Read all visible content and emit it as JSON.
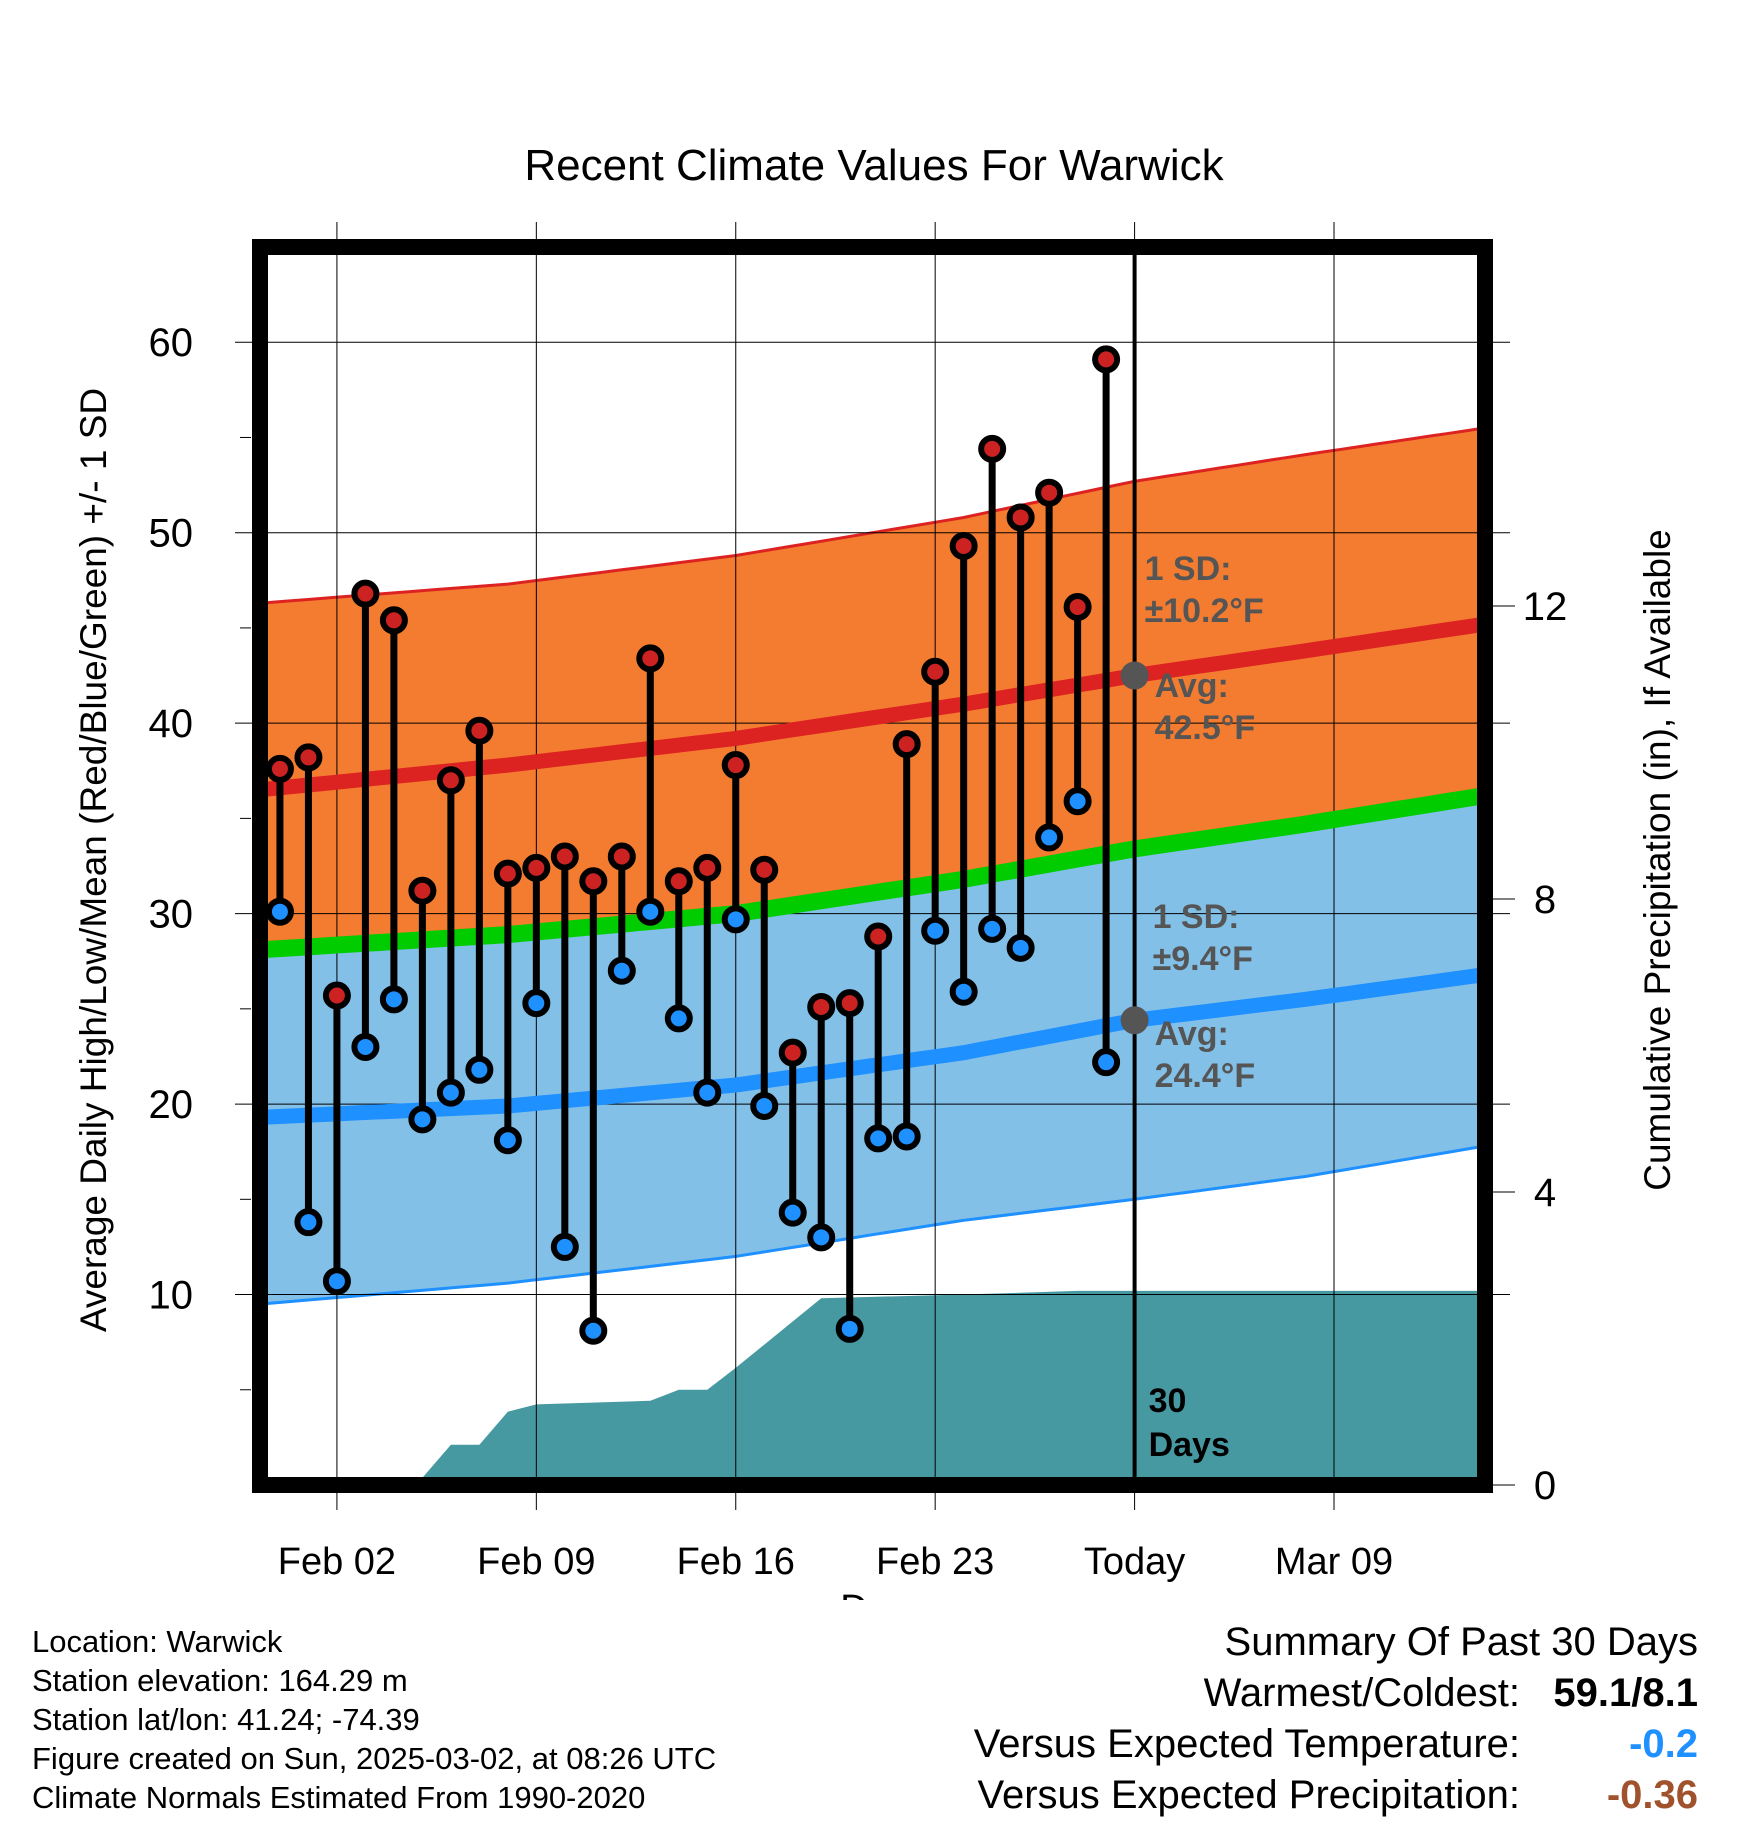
{
  "chart_data": {
    "type": "line",
    "title": "Recent Climate Values For Warwick",
    "xlabel": "Day",
    "ylabel": "Average Daily High/Low/Mean (Red/Blue/Green) +/- 1 SD",
    "y2label": "Cumulative Precipitation (in), If Available",
    "ylim": [
      0,
      65
    ],
    "y2lim": [
      0,
      16.9
    ],
    "xlim": [
      -2.7,
      40.3
    ],
    "y_ticks": [
      10,
      20,
      30,
      40,
      50,
      60
    ],
    "y2_ticks": [
      0,
      4,
      8,
      12
    ],
    "x_ticks": [
      {
        "day": 0,
        "label": "Feb 02"
      },
      {
        "day": 7,
        "label": "Feb 09"
      },
      {
        "day": 14,
        "label": "Feb 16"
      },
      {
        "day": 21,
        "label": "Feb 23"
      },
      {
        "day": 28,
        "label": "Today"
      },
      {
        "day": 35,
        "label": "Mar 09"
      }
    ],
    "normals": {
      "days": [
        -2.7,
        6,
        14,
        22,
        28,
        34,
        40.3
      ],
      "high_avg": [
        36.5,
        37.8,
        39.2,
        41.0,
        42.5,
        43.8,
        45.2
      ],
      "high_sd_upper": [
        46.3,
        47.3,
        48.8,
        50.8,
        52.7,
        54.1,
        55.5
      ],
      "mean_avg": [
        28.1,
        28.9,
        30.0,
        31.8,
        33.4,
        34.7,
        36.2
      ],
      "low_avg": [
        19.3,
        19.9,
        21.0,
        22.7,
        24.4,
        25.5,
        26.8
      ],
      "low_sd_lower": [
        9.5,
        10.6,
        12.0,
        13.9,
        15.0,
        16.2,
        17.8
      ]
    },
    "daily_days": [
      -2,
      -1,
      0,
      1,
      2,
      3,
      4,
      5,
      6,
      7,
      8,
      9,
      10,
      11,
      12,
      13,
      14,
      15,
      16,
      17,
      18,
      19,
      20,
      21,
      22,
      23,
      24,
      25,
      26,
      27
    ],
    "highs": [
      37.6,
      38.2,
      25.7,
      46.8,
      45.4,
      31.2,
      37.0,
      39.6,
      32.1,
      32.4,
      33.0,
      31.7,
      33.0,
      43.4,
      31.7,
      32.4,
      37.8,
      32.3,
      22.7,
      25.1,
      25.3,
      28.8,
      38.9,
      42.7,
      49.3,
      54.4,
      50.8,
      52.1,
      46.1,
      59.1
    ],
    "lows": [
      30.1,
      13.8,
      10.7,
      23.0,
      25.5,
      19.2,
      20.6,
      21.8,
      18.1,
      25.3,
      12.5,
      8.1,
      27.0,
      30.1,
      24.5,
      20.6,
      29.7,
      19.9,
      14.3,
      13.0,
      8.2,
      18.2,
      18.3,
      29.1,
      25.9,
      29.2,
      28.2,
      34.0,
      35.9,
      22.2
    ],
    "precip": {
      "days": [
        -2.6,
        0,
        3,
        4,
        5,
        6,
        7,
        11,
        12,
        13,
        14,
        17,
        22,
        26,
        28,
        40.3
      ],
      "cumulative": [
        0.05,
        0.05,
        0.1,
        0.55,
        0.55,
        1.0,
        1.1,
        1.15,
        1.3,
        1.3,
        1.6,
        2.55,
        2.6,
        2.65,
        2.65,
        2.65
      ]
    },
    "annotations": {
      "high_sd": "1 SD:",
      "high_sd_val": "±10.2°F",
      "high_avg": "Avg:",
      "high_avg_val": "42.5°F",
      "low_sd": "1 SD:",
      "low_sd_val": "±9.4°F",
      "low_avg": "Avg:",
      "low_avg_val": "24.4°F",
      "days_count": "30",
      "days_word": "Days"
    }
  },
  "colors": {
    "high_band": "#f47c30",
    "low_band": "#82c0e8",
    "mean_line": "#00cc00",
    "high_line": "#dd2222",
    "low_line": "#1e90ff",
    "precip": "#4799a1",
    "high_dot": "#cc2222",
    "low_dot": "#1e90ff",
    "anno": "#555555",
    "temp_dev": "#1e90ff",
    "precip_dev": "#a0522d"
  },
  "footer": {
    "location": "Location: Warwick",
    "elevation": "Station elevation: 164.29 m",
    "latlon": "Station lat/lon: 41.24; -74.39",
    "created": "Figure created on Sun, 2025-03-02, at 08:26 UTC",
    "normals": "Climate Normals Estimated From 1990-2020"
  },
  "summary": {
    "title": "Summary Of Past 30 Days",
    "warmest_label": "Warmest/Coldest:",
    "warmest_value": "59.1/8.1",
    "temp_label": "Versus Expected Temperature:",
    "temp_value": "-0.2",
    "precip_label": "Versus Expected Precipitation:",
    "precip_value": "-0.36"
  }
}
